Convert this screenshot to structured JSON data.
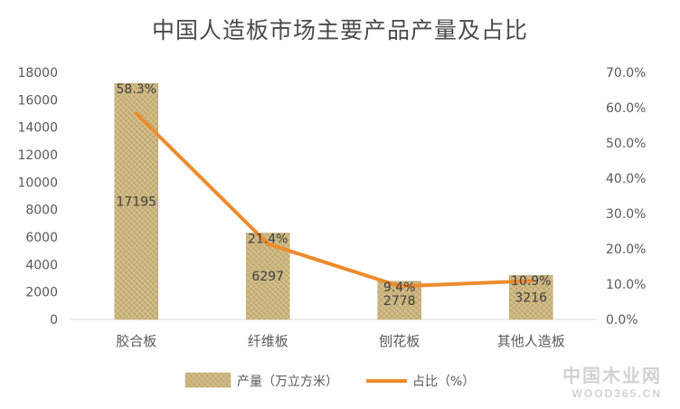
{
  "chart_data": {
    "type": "bar",
    "title": "中国人造板市场主要产品产量及占比",
    "categories": [
      "胶合板",
      "纤维板",
      "刨花板",
      "其他人造板"
    ],
    "series": [
      {
        "name": "产量（万立方米）",
        "type": "bar",
        "axis": "left",
        "values": [
          17195,
          6297,
          2778,
          3216
        ],
        "labels": [
          "17195",
          "6297",
          "2778",
          "3216"
        ],
        "color": "#c9b27c"
      },
      {
        "name": "占比（%）",
        "type": "line",
        "axis": "right",
        "values": [
          58.3,
          21.4,
          9.4,
          10.9
        ],
        "labels": [
          "58.3%",
          "21.4%",
          "9.4%",
          "10.9%"
        ],
        "color": "#ed8b2e"
      }
    ],
    "y_left": {
      "ylim": [
        0,
        18000
      ],
      "ticks": [
        "0",
        "2000",
        "4000",
        "6000",
        "8000",
        "10000",
        "12000",
        "14000",
        "16000",
        "18000"
      ]
    },
    "y_right": {
      "ylim": [
        0,
        70
      ],
      "ticks": [
        "0.0%",
        "10.0%",
        "20.0%",
        "30.0%",
        "40.0%",
        "50.0%",
        "60.0%",
        "70.0%"
      ]
    },
    "grid": false,
    "legend": "bottom"
  },
  "watermark": {
    "cn": "中国木业网",
    "en": "WOOD365.CN"
  }
}
